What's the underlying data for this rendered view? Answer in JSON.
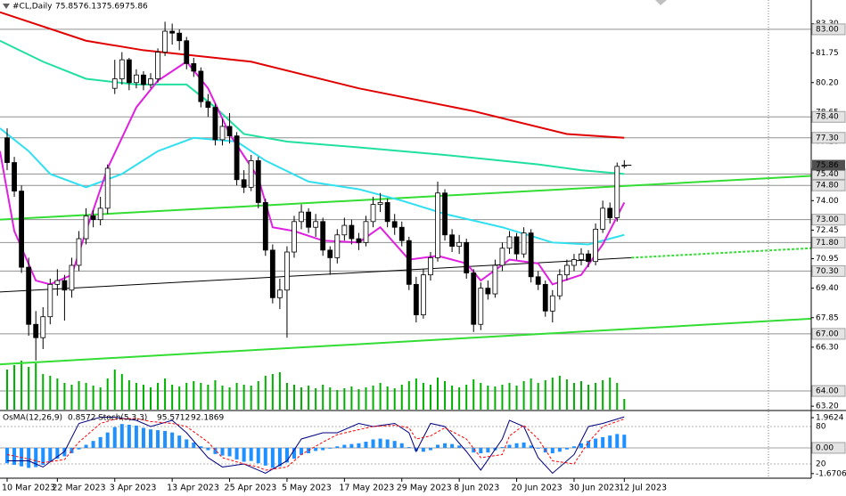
{
  "chart_data": {
    "type": "candlestick",
    "title": "#CL,Daily",
    "ylim": [
      63.02,
      84.54
    ],
    "yticks": [
      {
        "value": 83.3,
        "label": "83.30"
      },
      81.75,
      {
        "value": 80.2,
        "label": "80.20"
      },
      78.65,
      {
        "value": 77.1,
        "label": "77.10"
      },
      {
        "value": 74,
        "label": "74.00"
      },
      72.45,
      70.95,
      {
        "value": 69.4,
        "label": "69.40"
      },
      67.85,
      {
        "value": 66.3,
        "label": "66.30"
      },
      {
        "value": 63.2,
        "label": "63.20"
      }
    ],
    "levels": [
      {
        "value": 83,
        "label": "83.00"
      },
      {
        "value": 78.4,
        "label": "78.40"
      },
      {
        "value": 77.3,
        "label": "77.30"
      },
      {
        "value": 75.4,
        "label": "75.40"
      },
      {
        "value": 74.8,
        "label": "74.80"
      },
      {
        "value": 73,
        "label": "73.00"
      },
      {
        "value": 71.8,
        "label": "71.80"
      },
      {
        "value": 70.3,
        "label": "70.30"
      },
      {
        "value": 67,
        "label": "67.00"
      },
      {
        "value": 64,
        "label": "64.00"
      }
    ],
    "level_color": "#909090",
    "xticks": [
      {
        "value": 0,
        "label": "10 Mar 2023"
      },
      {
        "value": 7,
        "label": "22 Mar 2023"
      },
      {
        "value": 15,
        "label": "3 Apr 2023"
      },
      {
        "value": 23,
        "label": "13 Apr 2023"
      },
      {
        "value": 31,
        "label": "25 Apr 2023"
      },
      {
        "value": 39,
        "label": "5 May 2023"
      },
      {
        "value": 47,
        "label": "17 May 2023"
      },
      {
        "value": 55,
        "label": "29 May 2023"
      },
      {
        "value": 63,
        "label": "8 Jun 2023"
      },
      {
        "value": 71,
        "label": "20 Jun 2023"
      },
      {
        "value": 79,
        "label": "30 Jun 2023"
      },
      {
        "value": 86,
        "label": "12 Jul 2023"
      }
    ],
    "candles": [
      [
        77.3,
        77.8,
        75.6,
        76.0
      ],
      [
        76.0,
        76.3,
        74.2,
        74.5
      ],
      [
        74.5,
        74.8,
        70.2,
        70.5
      ],
      [
        70.5,
        71.0,
        66.9,
        67.5
      ],
      [
        67.5,
        68.2,
        65.6,
        66.8
      ],
      [
        66.8,
        68.4,
        66.2,
        67.9
      ],
      [
        67.9,
        69.9,
        67.5,
        69.6
      ],
      [
        69.6,
        70.4,
        69.0,
        69.8
      ],
      [
        69.8,
        70.1,
        67.7,
        69.3
      ],
      [
        69.3,
        71.0,
        68.9,
        70.6
      ],
      [
        70.6,
        72.4,
        70.3,
        72.0
      ],
      [
        72.0,
        73.6,
        71.7,
        73.2
      ],
      [
        73.2,
        73.5,
        72.6,
        73.0
      ],
      [
        73.0,
        74.2,
        72.7,
        73.6
      ],
      [
        73.6,
        75.9,
        73.3,
        75.7
      ],
      [
        79.9,
        81.4,
        79.6,
        80.4
      ],
      [
        80.4,
        81.8,
        80.1,
        81.4
      ],
      [
        81.4,
        81.5,
        79.8,
        80.2
      ],
      [
        80.2,
        80.9,
        79.9,
        80.6
      ],
      [
        80.6,
        80.8,
        79.8,
        80.1
      ],
      [
        80.1,
        80.7,
        79.9,
        80.4
      ],
      [
        80.4,
        82.0,
        80.2,
        81.8
      ],
      [
        81.8,
        83.4,
        81.6,
        82.9
      ],
      [
        82.9,
        83.3,
        82.2,
        82.8
      ],
      [
        82.8,
        83.0,
        81.9,
        82.4
      ],
      [
        82.4,
        82.6,
        80.9,
        81.2
      ],
      [
        81.2,
        81.5,
        80.5,
        80.8
      ],
      [
        80.8,
        81.0,
        78.9,
        79.2
      ],
      [
        79.2,
        79.6,
        78.4,
        78.9
      ],
      [
        78.9,
        79.1,
        76.9,
        77.2
      ],
      [
        77.2,
        78.3,
        76.9,
        77.9
      ],
      [
        77.9,
        78.6,
        77.0,
        77.4
      ],
      [
        77.4,
        77.6,
        74.8,
        75.1
      ],
      [
        75.1,
        75.6,
        74.4,
        74.7
      ],
      [
        74.7,
        76.4,
        74.5,
        76.1
      ],
      [
        76.1,
        76.3,
        73.6,
        73.9
      ],
      [
        73.9,
        74.1,
        71.1,
        71.4
      ],
      [
        71.4,
        71.7,
        68.6,
        68.9
      ],
      [
        68.9,
        69.9,
        68.3,
        69.3
      ],
      [
        69.3,
        71.6,
        66.8,
        71.3
      ],
      [
        71.3,
        73.2,
        71.0,
        72.9
      ],
      [
        72.9,
        73.8,
        72.5,
        73.4
      ],
      [
        73.4,
        73.6,
        72.3,
        72.6
      ],
      [
        72.6,
        73.3,
        72.1,
        72.9
      ],
      [
        72.9,
        73.1,
        71.1,
        71.4
      ],
      [
        71.4,
        71.6,
        70.1,
        71.0
      ],
      [
        71.0,
        72.5,
        70.7,
        72.2
      ],
      [
        72.2,
        73.1,
        71.9,
        72.7
      ],
      [
        72.7,
        73.0,
        71.7,
        72.0
      ],
      [
        72.0,
        72.3,
        71.4,
        71.8
      ],
      [
        71.8,
        73.2,
        71.6,
        72.9
      ],
      [
        72.9,
        74.2,
        72.6,
        73.8
      ],
      [
        73.8,
        74.4,
        73.4,
        73.9
      ],
      [
        73.9,
        74.1,
        72.6,
        72.9
      ],
      [
        72.9,
        73.3,
        72.2,
        72.6
      ],
      [
        72.6,
        72.9,
        71.6,
        71.9
      ],
      [
        71.9,
        72.1,
        69.3,
        69.6
      ],
      [
        69.6,
        70.0,
        67.6,
        68.0
      ],
      [
        68.0,
        70.4,
        67.8,
        70.1
      ],
      [
        70.1,
        71.3,
        69.8,
        71.0
      ],
      [
        71.0,
        75.0,
        70.8,
        74.4
      ],
      [
        74.4,
        74.6,
        71.9,
        72.2
      ],
      [
        72.2,
        72.5,
        71.3,
        71.6
      ],
      [
        71.6,
        72.2,
        71.2,
        71.8
      ],
      [
        71.8,
        72.0,
        69.9,
        70.2
      ],
      [
        70.2,
        70.4,
        67.1,
        67.5
      ],
      [
        67.5,
        69.7,
        67.2,
        69.4
      ],
      [
        69.4,
        69.8,
        68.8,
        69.1
      ],
      [
        69.1,
        70.9,
        68.9,
        70.6
      ],
      [
        70.6,
        71.8,
        70.3,
        71.5
      ],
      [
        71.5,
        72.4,
        71.2,
        72.1
      ],
      [
        72.1,
        72.3,
        70.9,
        71.2
      ],
      [
        71.2,
        72.6,
        71.0,
        72.3
      ],
      [
        72.3,
        72.5,
        69.7,
        70.0
      ],
      [
        70.0,
        70.3,
        69.3,
        69.6
      ],
      [
        69.6,
        69.8,
        67.9,
        68.2
      ],
      [
        68.2,
        69.3,
        67.6,
        69.0
      ],
      [
        69.0,
        70.4,
        68.8,
        70.1
      ],
      [
        70.1,
        70.9,
        69.8,
        70.6
      ],
      [
        70.6,
        71.2,
        70.3,
        70.9
      ],
      [
        70.9,
        71.5,
        70.6,
        71.2
      ],
      [
        71.2,
        71.4,
        70.5,
        70.8
      ],
      [
        70.8,
        72.8,
        70.6,
        72.5
      ],
      [
        72.5,
        74.0,
        72.3,
        73.6
      ],
      [
        73.6,
        73.9,
        72.8,
        73.1
      ],
      [
        73.1,
        76.0,
        72.9,
        75.8
      ],
      [
        75.85,
        76.13,
        75.69,
        75.86
      ]
    ],
    "volume": [
      45,
      50,
      55,
      48,
      52,
      40,
      38,
      35,
      30,
      28,
      32,
      30,
      27,
      25,
      35,
      45,
      40,
      33,
      30,
      28,
      25,
      30,
      35,
      28,
      26,
      30,
      32,
      30,
      28,
      33,
      27,
      25,
      30,
      28,
      27,
      32,
      38,
      40,
      42,
      30,
      28,
      25,
      27,
      24,
      28,
      25,
      22,
      24,
      26,
      23,
      25,
      27,
      30,
      26,
      24,
      28,
      32,
      35,
      30,
      28,
      36,
      32,
      27,
      25,
      28,
      34,
      30,
      27,
      26,
      28,
      30,
      27,
      32,
      35,
      30,
      33,
      36,
      38,
      34,
      30,
      32,
      28,
      30,
      33,
      36,
      30,
      12
    ],
    "volume_color": "#00b000",
    "lines": [
      {
        "color": "#e00000",
        "x": [
          -1,
          11,
          19,
          34,
          49,
          65,
          78,
          86
        ],
        "values": [
          83.9,
          82.4,
          81.9,
          81.3,
          79.9,
          78.7,
          77.5,
          77.3
        ]
      },
      {
        "color": "#20e0a0",
        "x": [
          -1,
          5,
          11,
          18,
          25,
          29,
          33,
          39,
          49,
          61,
          74,
          80,
          86
        ],
        "values": [
          82.4,
          81.3,
          80.4,
          80.1,
          80.1,
          78.9,
          77.5,
          77.1,
          76.8,
          76.4,
          75.9,
          75.6,
          75.4
        ]
      },
      {
        "color": "#30e0f0",
        "x": [
          -1,
          3,
          6,
          11,
          16,
          21,
          26,
          32,
          36,
          42,
          49,
          55,
          61,
          69,
          76,
          81,
          86
        ],
        "values": [
          77.8,
          76.6,
          75.4,
          74.7,
          75.4,
          76.6,
          77.3,
          77.1,
          76.1,
          75.0,
          74.6,
          74.0,
          73.3,
          72.6,
          71.8,
          71.7,
          72.2
        ]
      },
      {
        "color": "#e020e0",
        "x": [
          -1,
          1,
          4,
          6,
          9,
          11,
          14,
          18,
          21,
          25,
          28,
          31,
          35,
          37,
          40,
          44,
          49,
          52,
          56,
          60,
          64,
          66,
          70,
          74,
          76,
          80,
          83,
          86
        ],
        "values": [
          76.6,
          72.4,
          69.8,
          69.6,
          70.1,
          72.4,
          75.7,
          78.9,
          80.3,
          81.3,
          79.9,
          77.5,
          75.2,
          72.6,
          72.4,
          71.9,
          71.8,
          72.6,
          70.9,
          71.1,
          70.7,
          69.8,
          70.9,
          70.7,
          69.6,
          70.1,
          71.7,
          73.9
        ]
      }
    ],
    "trendlines": [
      {
        "color": "#33dd33",
        "x": [
          -1,
          117
        ],
        "values": [
          73.0,
          75.4
        ]
      },
      {
        "color": "#33dd33",
        "x": [
          -1,
          117
        ],
        "values": [
          65.4,
          67.9
        ]
      },
      {
        "color": "#000000",
        "x": [
          -1,
          87
        ],
        "values": [
          69.2,
          71.0
        ]
      },
      {
        "color": "#33dd33",
        "dash": true,
        "x": [
          87,
          117
        ],
        "values": [
          71.0,
          71.6
        ]
      }
    ],
    "oscillator": {
      "osma_title": "OsMA(12,26,9)",
      "stoch_title": "Stoch(5,3,3)",
      "ylim": [
        -1.97,
        2.37
      ],
      "yticks": [
        1.9624,
        {
          "value": 0,
          "label": "0.00"
        },
        -1.6706
      ],
      "y2lim": [
        -2.9,
        104.3
      ],
      "y2ticks": [
        80,
        20
      ],
      "osma": {
        "color": "#1e90ff",
        "values": [
          -1.0,
          -1.1,
          -1.2,
          -1.3,
          -1.25,
          -1.1,
          -0.9,
          -0.7,
          -0.55,
          -0.35,
          -0.1,
          0.2,
          0.45,
          0.7,
          1.0,
          1.35,
          1.55,
          1.5,
          1.45,
          1.3,
          1.2,
          1.15,
          1.1,
          1.0,
          0.8,
          0.55,
          0.35,
          0.1,
          -0.15,
          -0.4,
          -0.5,
          -0.55,
          -0.75,
          -0.9,
          -0.85,
          -1.0,
          -1.15,
          -1.3,
          -1.2,
          -0.95,
          -0.7,
          -0.45,
          -0.35,
          -0.2,
          -0.15,
          -0.05,
          0.1,
          0.2,
          0.25,
          0.3,
          0.4,
          0.55,
          0.6,
          0.55,
          0.45,
          0.3,
          0.05,
          -0.2,
          -0.25,
          -0.15,
          0.2,
          0.3,
          0.25,
          0.15,
          0.0,
          -0.3,
          -0.35,
          -0.3,
          -0.15,
          0.05,
          0.2,
          0.3,
          0.35,
          0.15,
          -0.05,
          -0.3,
          -0.35,
          -0.25,
          -0.1,
          0.1,
          0.3,
          0.45,
          0.6,
          0.7,
          0.8,
          0.9,
          0.8572
        ]
      },
      "stoch": [
        {
          "color": "#000080",
          "x": [
            0,
            3,
            5,
            8,
            10,
            13,
            15,
            18,
            20,
            23,
            25,
            28,
            30,
            33,
            35,
            36,
            39,
            41,
            44,
            46,
            49,
            51,
            54,
            56,
            57,
            59,
            61,
            64,
            66,
            69,
            70,
            72,
            74,
            76,
            79,
            81,
            83,
            86
          ],
          "values": [
            25,
            25,
            15,
            40,
            85,
            95,
            95,
            90,
            80,
            90,
            70,
            30,
            15,
            20,
            10,
            5,
            25,
            60,
            70,
            70,
            85,
            80,
            85,
            70,
            40,
            85,
            80,
            40,
            10,
            60,
            90,
            80,
            30,
            5,
            35,
            80,
            85,
            95.5712
          ]
        },
        {
          "color": "#ff0000",
          "dash": true,
          "x": [
            0,
            3,
            5,
            8,
            10,
            13,
            15,
            18,
            20,
            23,
            25,
            28,
            30,
            33,
            35,
            36,
            39,
            41,
            44,
            46,
            49,
            51,
            54,
            56,
            57,
            59,
            61,
            64,
            66,
            69,
            70,
            72,
            74,
            76,
            79,
            81,
            83,
            86
          ],
          "values": [
            35,
            28,
            22,
            27,
            55,
            85,
            92,
            93,
            88,
            85,
            80,
            55,
            30,
            20,
            15,
            10,
            15,
            35,
            55,
            67,
            75,
            80,
            82,
            78,
            60,
            65,
            78,
            60,
            30,
            35,
            65,
            82,
            60,
            25,
            20,
            55,
            80,
            92.1869
          ]
        }
      ]
    }
  }
}
